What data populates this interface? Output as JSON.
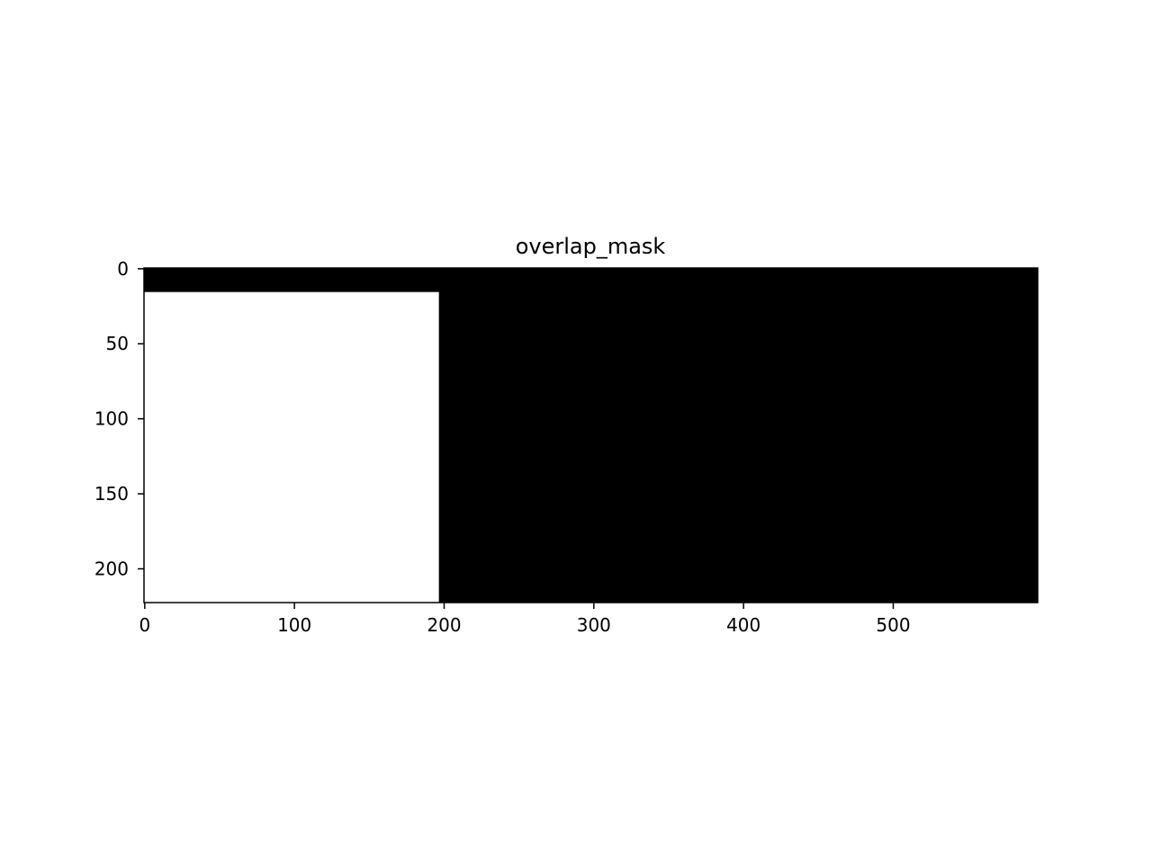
{
  "chart_data": {
    "type": "heatmap",
    "title": "overlap_mask",
    "xlabel": "",
    "ylabel": "",
    "image_width": 597,
    "image_height": 223,
    "xlim": [
      -0.5,
      596.5
    ],
    "ylim": [
      222.5,
      -0.5
    ],
    "xticks": [
      0,
      100,
      200,
      300,
      400,
      500
    ],
    "yticks": [
      0,
      50,
      100,
      150,
      200
    ],
    "colormap": {
      "0": "#000000",
      "1": "#ffffff"
    },
    "background_value": 0,
    "regions": [
      {
        "name": "overlap",
        "value": 1,
        "x_range": [
          0,
          196
        ],
        "y_range": [
          16,
          222
        ]
      }
    ],
    "grid": false
  }
}
